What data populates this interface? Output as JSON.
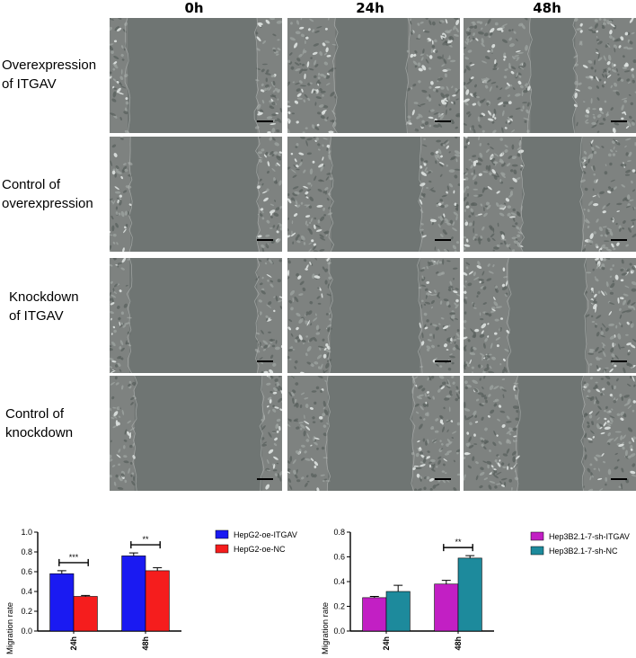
{
  "figure": {
    "columns": [
      "0h",
      "24h",
      "48h"
    ],
    "rows": [
      {
        "line1": "Overexpression",
        "line2": "of ITGAV",
        "gaps": [
          0.75,
          0.42,
          0.26
        ]
      },
      {
        "line1": "Control of",
        "line2": "overexpression",
        "gaps": [
          0.74,
          0.52,
          0.35
        ]
      },
      {
        "line1": "Knockdown",
        "line2": "of ITGAV",
        "gaps": [
          0.74,
          0.52,
          0.45
        ]
      },
      {
        "line1": "Control of",
        "line2": "knockdown",
        "gaps": [
          0.74,
          0.49,
          0.38
        ]
      }
    ]
  },
  "chart_data": [
    {
      "type": "bar",
      "ylabel": "Migration rate",
      "categories": [
        "24h",
        "48h"
      ],
      "ylim": [
        0,
        1.0
      ],
      "yticks": [
        "0.0",
        "0.2",
        "0.4",
        "0.6",
        "0.8",
        "1.0"
      ],
      "legend_position": "right",
      "series": [
        {
          "name": "HepG2-oe-ITGAV",
          "color": "#1a1af2",
          "values": [
            0.58,
            0.76
          ],
          "errors": [
            0.03,
            0.03
          ]
        },
        {
          "name": "HepG2-oe-NC",
          "color": "#f51d1d",
          "values": [
            0.35,
            0.61
          ],
          "errors": [
            0.01,
            0.03
          ]
        }
      ],
      "significance": [
        "***",
        "**"
      ]
    },
    {
      "type": "bar",
      "ylabel": "Migration rate",
      "categories": [
        "24h",
        "48h"
      ],
      "ylim": [
        0,
        0.8
      ],
      "yticks": [
        "0.0",
        "0.2",
        "0.4",
        "0.6",
        "0.8"
      ],
      "legend_position": "right",
      "series": [
        {
          "name": "Hep3B2.1-7-sh-ITGAV",
          "color": "#c21fc4",
          "values": [
            0.27,
            0.38
          ],
          "errors": [
            0.01,
            0.03
          ]
        },
        {
          "name": "Hep3B2.1-7-sh-NC",
          "color": "#1d8a9c",
          "values": [
            0.32,
            0.59
          ],
          "errors": [
            0.05,
            0.02
          ]
        }
      ],
      "significance": [
        "",
        "**"
      ]
    }
  ]
}
